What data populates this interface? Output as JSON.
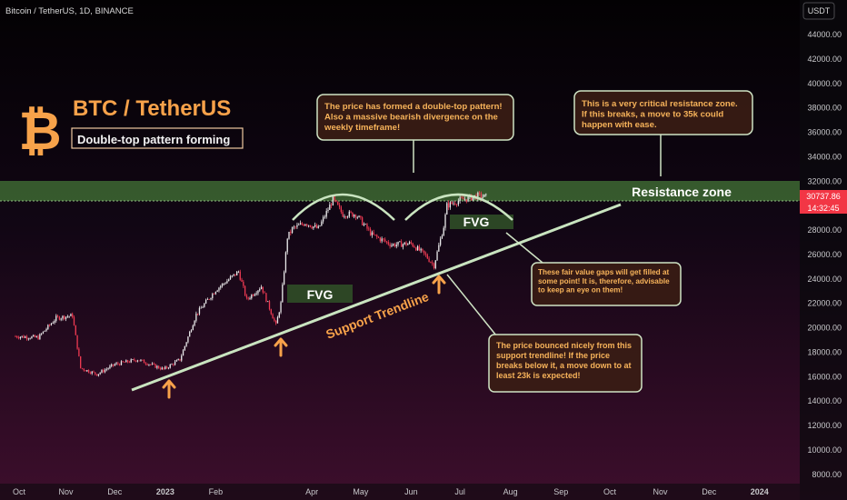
{
  "header": {
    "symbol_line": "Bitcoin / TetherUS, 1D, BINANCE",
    "currency": "USDT"
  },
  "title_block": {
    "title": "BTC / TetherUS",
    "subtitle": "Double-top pattern forming",
    "logo_glyph": "bitcoin-icon"
  },
  "price_scale": {
    "ticks": [
      "44000.00",
      "42000.00",
      "40000.00",
      "38000.00",
      "36000.00",
      "34000.00",
      "32000.00",
      "30000.00",
      "28000.00",
      "26000.00",
      "24000.00",
      "22000.00",
      "20000.00",
      "18000.00",
      "16000.00",
      "14000.00",
      "12000.00",
      "10000.00",
      "8000.00"
    ],
    "last_price": "30737.86",
    "countdown": "14:32:45"
  },
  "time_axis": {
    "labels": [
      "Oct",
      "Nov",
      "Dec",
      "2023",
      "Feb",
      "Apr",
      "May",
      "Jun",
      "Jul",
      "Aug",
      "Sep",
      "Oct",
      "Nov",
      "Dec",
      "2024"
    ]
  },
  "annotations": {
    "double_top": "The price has formed a double-top pattern! Also a massive bearish divergence on the weekly timeframe!",
    "resistance_note": "This is a very critical resistance zone. If this breaks, a move to 35k could happen with ease.",
    "resistance_label": "Resistance zone",
    "fvg_label_1": "FVG",
    "fvg_label_2": "FVG",
    "fvg_note": "These fair value gaps will get filled at some point! It is, therefore, advisable to keep an eye on them!",
    "support_label": "Support Trendline",
    "support_note": "The price bounced nicely from this support trendline! If the price breaks below it, a move down to at least 23k is expected!"
  },
  "colors": {
    "up": "#e9e9ea",
    "down": "#ee3a52",
    "accent": "#f7a24a",
    "zone": "#4a7a3a",
    "trendline": "#c9e4c0",
    "note_border": "#cfe3c4",
    "note_text": "#f7b35a",
    "price_tag": "#f23645"
  },
  "chart_data": {
    "type": "candlestick",
    "title": "Bitcoin / TetherUS, 1D, BINANCE",
    "ylim": [
      8000,
      45000
    ],
    "xlim": [
      "2022-10-01",
      "2024-01-25"
    ],
    "resistance_zone": [
      29900,
      32000
    ],
    "support_trendline": [
      [
        "2022-12-10",
        15200
      ],
      [
        "2023-10-01",
        30100
      ]
    ],
    "fvg_zones": [
      [
        22800,
        24300
      ],
      [
        28400,
        29500
      ]
    ],
    "last_price": 30737.86,
    "close_series": {
      "x": [
        "2022-10-01",
        "2022-10-15",
        "2022-10-26",
        "2022-11-05",
        "2022-11-10",
        "2022-11-20",
        "2022-12-01",
        "2022-12-15",
        "2022-12-31",
        "2023-01-10",
        "2023-01-20",
        "2023-02-01",
        "2023-02-15",
        "2023-02-20",
        "2023-03-01",
        "2023-03-10",
        "2023-03-13",
        "2023-03-17",
        "2023-03-20",
        "2023-03-28",
        "2023-04-05",
        "2023-04-14",
        "2023-04-20",
        "2023-04-28",
        "2023-05-08",
        "2023-05-20",
        "2023-06-01",
        "2023-06-10",
        "2023-06-15",
        "2023-06-21",
        "2023-06-23",
        "2023-06-30",
        "2023-07-06",
        "2023-07-12",
        "2023-07-17"
      ],
      "values": [
        19300,
        19200,
        20800,
        21000,
        16700,
        16200,
        17000,
        17400,
        16600,
        17400,
        21100,
        23100,
        24600,
        22300,
        23400,
        20200,
        22000,
        27400,
        28100,
        28600,
        28100,
        30500,
        29300,
        29300,
        27600,
        26800,
        26900,
        25900,
        25100,
        28300,
        30000,
        30400,
        30600,
        30800,
        30700
      ]
    }
  }
}
